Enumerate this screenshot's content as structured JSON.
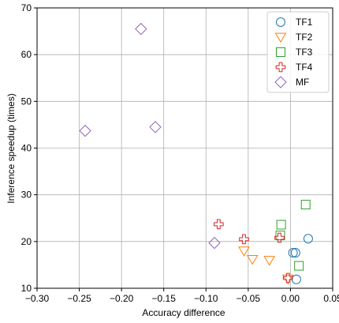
{
  "chart_data": {
    "type": "scatter",
    "xlabel": "Accuracy difference",
    "ylabel": "Inference speedup (times)",
    "xlim": [
      -0.3,
      0.05
    ],
    "ylim": [
      10,
      70
    ],
    "x_ticks": [
      -0.3,
      -0.25,
      -0.2,
      -0.15,
      -0.1,
      -0.05,
      0.0,
      0.05
    ],
    "x_tick_labels": [
      "−0.30",
      "−0.25",
      "−0.20",
      "−0.15",
      "−0.10",
      "−0.05",
      "0.00",
      "0.05"
    ],
    "y_ticks": [
      10,
      20,
      30,
      40,
      50,
      60,
      70
    ],
    "y_tick_labels": [
      "10",
      "20",
      "30",
      "40",
      "50",
      "60",
      "70"
    ],
    "grid": true,
    "legend_position": "top-right",
    "series": [
      {
        "name": "TF1",
        "marker": "circle",
        "color": "#1f77b4",
        "points": [
          [
            0.021,
            20.6
          ],
          [
            0.003,
            17.6
          ],
          [
            0.006,
            17.6
          ],
          [
            0.007,
            11.9
          ]
        ]
      },
      {
        "name": "TF2",
        "marker": "triangle-down",
        "color": "#ff7f0e",
        "points": [
          [
            -0.055,
            18.0
          ],
          [
            -0.045,
            16.2
          ],
          [
            -0.025,
            16.0
          ],
          [
            -0.003,
            12.0
          ]
        ]
      },
      {
        "name": "TF3",
        "marker": "square",
        "color": "#2ca02c",
        "points": [
          [
            -0.011,
            23.6
          ],
          [
            -0.012,
            21.3
          ],
          [
            0.018,
            27.9
          ],
          [
            0.01,
            14.8
          ]
        ]
      },
      {
        "name": "TF4",
        "marker": "plus",
        "color": "#d62728",
        "points": [
          [
            -0.085,
            23.7
          ],
          [
            -0.055,
            20.5
          ],
          [
            -0.013,
            20.8
          ],
          [
            -0.003,
            12.2
          ]
        ]
      },
      {
        "name": "MF",
        "marker": "diamond",
        "color": "#9467bd",
        "points": [
          [
            -0.177,
            65.5
          ],
          [
            -0.243,
            43.7
          ],
          [
            -0.16,
            44.5
          ],
          [
            -0.09,
            19.7
          ]
        ]
      }
    ]
  }
}
